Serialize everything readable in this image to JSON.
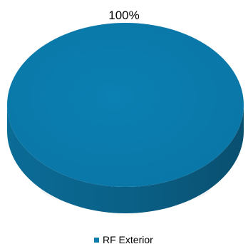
{
  "chart_data": {
    "type": "pie",
    "style": "3d",
    "categories": [
      "RF Exterior"
    ],
    "values": [
      100
    ],
    "data_labels": [
      "100%"
    ],
    "legend": {
      "placement": "bottom",
      "entries": [
        "RF Exterior"
      ]
    },
    "colors": {
      "RF Exterior": "#0a7cad",
      "side": "#0a5f85",
      "side_dark": "#084f6f"
    }
  }
}
